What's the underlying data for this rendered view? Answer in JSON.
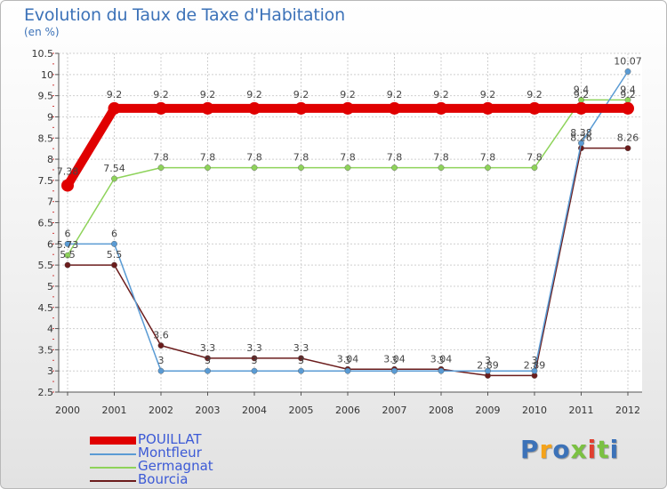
{
  "header": {
    "title": "Evolution du Taux de Taxe d'Habitation",
    "unit": "(en %)"
  },
  "logo": {
    "text": "Proxiti",
    "colors": [
      "#3c72b8",
      "#f5a31a",
      "#3c72b8",
      "#7bc142",
      "#e04030",
      "#7bc142",
      "#3c72b8"
    ]
  },
  "chart_data": {
    "type": "line",
    "title": "Evolution du Taux de Taxe d'Habitation",
    "ylabel": "(en %)",
    "xlabel": "",
    "x": [
      "2000",
      "2001",
      "2002",
      "2003",
      "2004",
      "2005",
      "2006",
      "2007",
      "2008",
      "2009",
      "2010",
      "2011",
      "2012"
    ],
    "ylim": [
      2.5,
      10.5
    ],
    "yticks": [
      "2.5",
      "3",
      "3.5",
      "4",
      "4.5",
      "5",
      "5.5",
      "6",
      "6.5",
      "7",
      "7.5",
      "8",
      "8.5",
      "9",
      "9.5",
      "10",
      "10.5"
    ],
    "grid": true,
    "legend_position": "bottom-left",
    "series": [
      {
        "name": "POUILLAT",
        "color": "#e00000",
        "bold": true,
        "values": [
          7.38,
          9.2,
          9.2,
          9.2,
          9.2,
          9.2,
          9.2,
          9.2,
          9.2,
          9.2,
          9.2,
          9.2,
          9.2
        ],
        "labels": [
          "7.38",
          "9.2",
          "9.2",
          "9.2",
          "9.2",
          "9.2",
          "9.2",
          "9.2",
          "9.2",
          "9.2",
          "9.2",
          "9.2",
          "9.2"
        ]
      },
      {
        "name": "Montfleur",
        "color": "#5a9bd4",
        "bold": false,
        "values": [
          6,
          6,
          3,
          3,
          3,
          3,
          3,
          3,
          3,
          3,
          3,
          8.38,
          10.07
        ],
        "labels": [
          "6",
          "6",
          "3",
          "3",
          "3",
          "3",
          "3",
          "3",
          "3",
          "3",
          "3",
          "8.38",
          "10.07"
        ]
      },
      {
        "name": "Germagnat",
        "color": "#8ed35a",
        "bold": false,
        "values": [
          5.73,
          7.54,
          7.8,
          7.8,
          7.8,
          7.8,
          7.8,
          7.8,
          7.8,
          7.8,
          7.8,
          9.4,
          9.4
        ],
        "labels": [
          "5.73",
          "7.54",
          "7.8",
          "7.8",
          "7.8",
          "7.8",
          "7.8",
          "7.8",
          "7.8",
          "7.8",
          "7.8",
          "9.4",
          "9.4"
        ]
      },
      {
        "name": "Bourcia",
        "color": "#6b1c1c",
        "bold": false,
        "values": [
          5.5,
          5.5,
          3.6,
          3.3,
          3.3,
          3.3,
          3.04,
          3.04,
          3.04,
          2.89,
          2.89,
          8.26,
          8.26
        ],
        "labels": [
          "5.5",
          "5.5",
          "3.6",
          "3.3",
          "3.3",
          "3.3",
          "3.04",
          "3.04",
          "3.04",
          "2.89",
          "2.89",
          "8.26",
          "8.26"
        ]
      }
    ]
  }
}
